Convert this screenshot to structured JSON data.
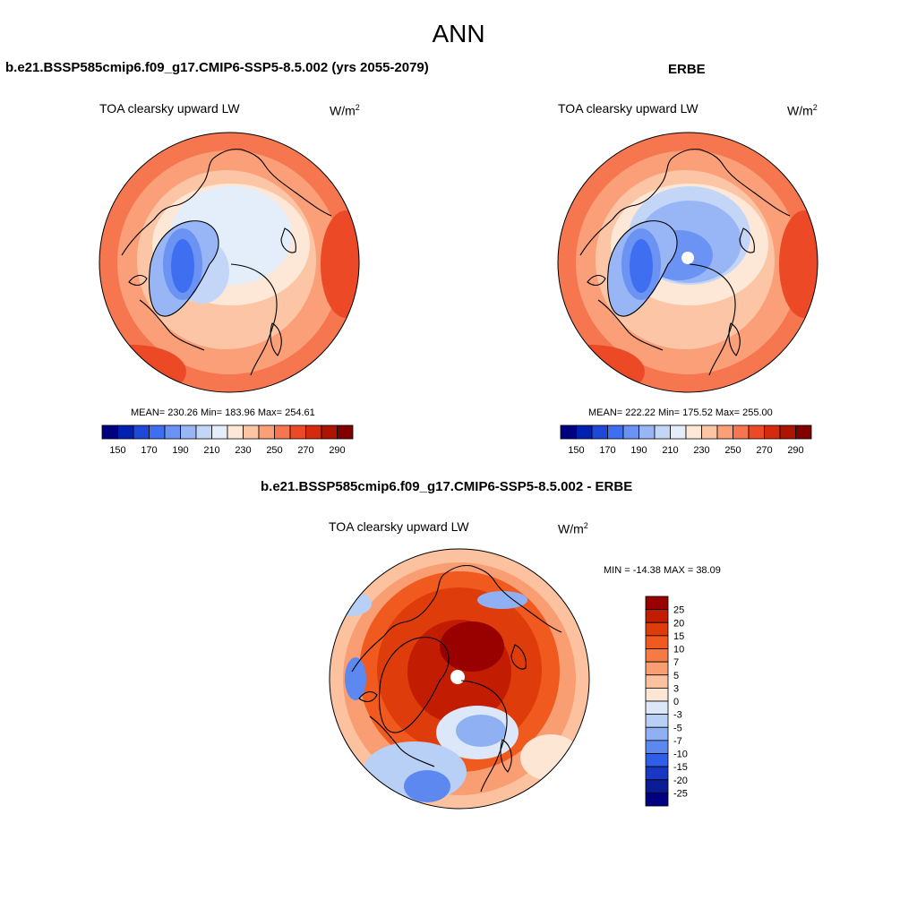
{
  "figure": {
    "season_title": "ANN"
  },
  "panels": {
    "model": {
      "title": "b.e21.BSSP585cmip6.f09_g17.CMIP6-SSP5-8.5.002 (yrs 2055-2079)",
      "variable": "TOA clearsky upward LW",
      "units_base": "W/m",
      "units_exp": "2",
      "stats": "MEAN= 230.26  Min= 183.96  Max= 254.61"
    },
    "obs": {
      "title": "ERBE",
      "variable": "TOA clearsky upward LW",
      "units_base": "W/m",
      "units_exp": "2",
      "stats": "MEAN= 222.22  Min= 175.52  Max= 255.00"
    },
    "diff": {
      "title": "b.e21.BSSP585cmip6.f09_g17.CMIP6-SSP5-8.5.002 - ERBE",
      "variable": "TOA clearsky upward LW",
      "units_base": "W/m",
      "units_exp": "2",
      "stats": "MIN = -14.38 MAX =  38.09"
    }
  },
  "colorbar_main": {
    "labels": [
      "150",
      "170",
      "190",
      "210",
      "230",
      "250",
      "270",
      "290"
    ],
    "colors": [
      "#000080",
      "#0020b0",
      "#1f48d8",
      "#3f6ff0",
      "#6b93f3",
      "#98b6f6",
      "#c4d6f8",
      "#e4eefb",
      "#fde8d8",
      "#fcc6a6",
      "#fa9f78",
      "#f5764f",
      "#ec4a26",
      "#d42a0d",
      "#ad1503",
      "#800000"
    ]
  },
  "colorbar_diff": {
    "labels": [
      "25",
      "20",
      "15",
      "10",
      "7",
      "5",
      "3",
      "0",
      "-3",
      "-5",
      "-7",
      "-10",
      "-15",
      "-20",
      "-25"
    ],
    "colors": [
      "#990000",
      "#c21d02",
      "#de3c0a",
      "#f05a1f",
      "#f57a44",
      "#f99e73",
      "#fcc2a0",
      "#fde6d4",
      "#dce8fa",
      "#b8cff6",
      "#8fb0f3",
      "#5c88ef",
      "#2f5ee8",
      "#1838c4",
      "#0a1c96",
      "#000080"
    ]
  }
}
